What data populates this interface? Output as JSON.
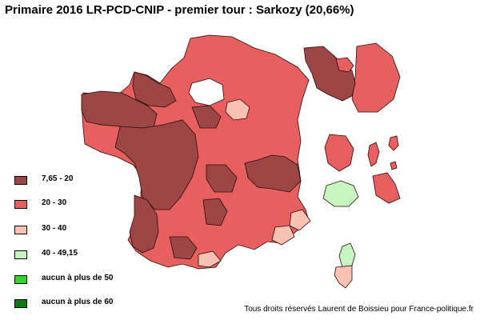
{
  "title": "Primaire 2016 LR-PCD-CNIP - premier tour : Sarkozy (20,66%)",
  "legend": [
    {
      "label": "7,65 - 20",
      "color": "#9c4646"
    },
    {
      "label": "20 - 30",
      "color": "#e85f5f"
    },
    {
      "label": "30 - 40",
      "color": "#f7c2b2"
    },
    {
      "label": "40 - 49,15",
      "color": "#c6f5bf"
    },
    {
      "label": "aucun à plus de 50",
      "color": "#2ed62e"
    },
    {
      "label": "aucun à plus de 60",
      "color": "#0c7a0c"
    }
  ],
  "credit": "Tous droits réservés Laurent de Boissieu pour France-politique.fr"
}
